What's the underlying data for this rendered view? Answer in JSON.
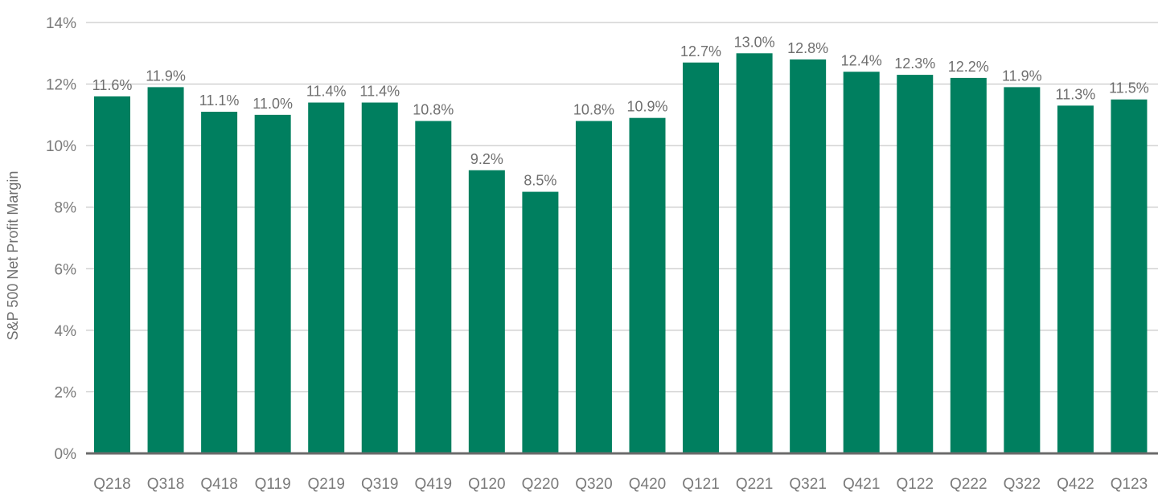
{
  "chart_data": {
    "type": "bar",
    "title": "",
    "xlabel": "",
    "ylabel": "S&P 500 Net Profit Margin",
    "ylim": [
      0,
      14
    ],
    "yticks": [
      0,
      2,
      4,
      6,
      8,
      10,
      12,
      14
    ],
    "ytick_labels": [
      "0%",
      "2%",
      "4%",
      "6%",
      "8%",
      "10%",
      "12%",
      "14%"
    ],
    "grid": true,
    "categories": [
      "Q218",
      "Q318",
      "Q418",
      "Q119",
      "Q219",
      "Q319",
      "Q419",
      "Q120",
      "Q220",
      "Q320",
      "Q420",
      "Q121",
      "Q221",
      "Q321",
      "Q421",
      "Q122",
      "Q222",
      "Q322",
      "Q422",
      "Q123"
    ],
    "values": [
      11.6,
      11.9,
      11.1,
      11.0,
      11.4,
      11.4,
      10.8,
      9.2,
      8.5,
      10.8,
      10.9,
      12.7,
      13.0,
      12.8,
      12.4,
      12.3,
      12.2,
      11.9,
      11.3,
      11.5
    ],
    "data_labels": [
      "11.6%",
      "11.9%",
      "11.1%",
      "11.0%",
      "11.4%",
      "11.4%",
      "10.8%",
      "9.2%",
      "8.5%",
      "10.8%",
      "10.9%",
      "12.7%",
      "13.0%",
      "12.8%",
      "12.4%",
      "12.3%",
      "12.2%",
      "11.9%",
      "11.3%",
      "11.5%"
    ],
    "colors": {
      "bar": "#007f5f",
      "grid": "#bcbcbc",
      "baseline": "#6b6b6b",
      "text": "#6f6f6f"
    }
  }
}
